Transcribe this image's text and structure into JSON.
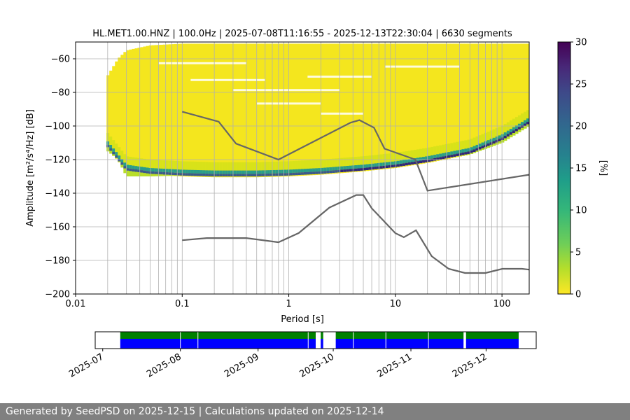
{
  "chart_data": [
    {
      "type": "heatmap",
      "title": "HL.MET1.00.HNZ | 100.0Hz | 2025-07-08T11:16:55 - 2025-12-13T22:30:04 | 6630 segments",
      "xlabel": "Period [s]",
      "ylabel": "Amplitude [m²/s⁴/Hz] [dB]",
      "x_scale": "log",
      "xlim": [
        0.01,
        180
      ],
      "ylim": [
        -200,
        -50
      ],
      "x_ticks": [
        {
          "value": 0.01,
          "label": "0.01"
        },
        {
          "value": 0.1,
          "label": "0.1"
        },
        {
          "value": 1,
          "label": "1"
        },
        {
          "value": 10,
          "label": "10"
        },
        {
          "value": 100,
          "label": "100"
        }
      ],
      "y_ticks": [
        -60,
        -80,
        -100,
        -120,
        -140,
        -160,
        -180,
        -200
      ],
      "grid": true,
      "colorbar": {
        "label": "[%]",
        "min": 0,
        "max": 30,
        "ticks": [
          0,
          5,
          10,
          15,
          20,
          25,
          30
        ],
        "colormap": "viridis_r"
      },
      "noise_model_high": {
        "name": "NHNM",
        "x": [
          0.1,
          0.22,
          0.32,
          0.8,
          3.8,
          4.6,
          6.3,
          7.9,
          15.4,
          20,
          180
        ],
        "y": [
          -91.5,
          -97.4,
          -110.5,
          -120,
          -98,
          -96.5,
          -101,
          -113.5,
          -120,
          -138.5,
          -129
        ]
      },
      "noise_model_low": {
        "name": "NLNM",
        "x": [
          0.1,
          0.17,
          0.4,
          0.8,
          1.24,
          2.4,
          4.3,
          5,
          6,
          10,
          12,
          15.6,
          21.9,
          31.6,
          45,
          70,
          101,
          154,
          180
        ],
        "y": [
          -168,
          -166.7,
          -166.7,
          -169.2,
          -163.7,
          -148.6,
          -141.1,
          -141.1,
          -149,
          -163.8,
          -166.2,
          -162.1,
          -177.5,
          -185,
          -187.5,
          -187.5,
          -185,
          -185,
          -185.5
        ]
      },
      "pdf_mode": {
        "x": [
          0.02,
          0.03,
          0.05,
          0.1,
          0.2,
          0.5,
          1,
          2,
          5,
          10,
          20,
          50,
          100,
          180
        ],
        "y": [
          -110,
          -124,
          -126,
          -127,
          -127.5,
          -127.5,
          -127,
          -126,
          -124,
          -122,
          -119,
          -114,
          -106,
          -96
        ]
      },
      "pdf_bands": {
        "x": [
          0.0195,
          0.02,
          0.025,
          0.03,
          0.05,
          0.1,
          0.2,
          0.5,
          1,
          2,
          5,
          10,
          20,
          50,
          100,
          180
        ],
        "upper": [
          -83,
          -70,
          -60,
          -55,
          -52,
          -51,
          -51,
          -51,
          -51,
          -51,
          -51,
          -51,
          -51,
          -51,
          -51,
          -51
        ],
        "lower": [
          -112,
          -115,
          -120,
          -130,
          -130,
          -129.5,
          -129.5,
          -129.5,
          -129,
          -128,
          -126,
          -123,
          -121,
          -117,
          -110,
          -100
        ]
      }
    },
    {
      "type": "bar",
      "title": "",
      "xlabel": "",
      "ylabel": "",
      "x_ticks": [
        "2025-07",
        "2025-08",
        "2025-09",
        "2025-10",
        "2025-11",
        "2025-12"
      ],
      "xlim": [
        "2025-06-28",
        "2025-12-21"
      ],
      "series": [
        {
          "color": "#008000",
          "segments": [
            {
              "start": "2025-07-08",
              "end": "2025-09-23"
            },
            {
              "start": "2025-09-26",
              "end": "2025-09-26"
            },
            {
              "start": "2025-10-02",
              "end": "2025-11-21"
            },
            {
              "start": "2025-11-23",
              "end": "2025-12-13"
            }
          ]
        },
        {
          "color": "#0000ff",
          "segments": [
            {
              "start": "2025-07-08",
              "end": "2025-09-23"
            },
            {
              "start": "2025-09-26",
              "end": "2025-09-26"
            },
            {
              "start": "2025-10-02",
              "end": "2025-11-21"
            },
            {
              "start": "2025-11-23",
              "end": "2025-12-13"
            }
          ]
        }
      ],
      "gaps": [
        "2025-08-01",
        "2025-08-08",
        "2025-09-21",
        "2025-10-09",
        "2025-10-22",
        "2025-11-08"
      ]
    }
  ],
  "footer": {
    "text": "Generated by SeedPSD on 2025-12-15 | Calculations updated on 2025-12-14"
  },
  "colors": {
    "model_line": "#666666",
    "grid": "#b0b0b0",
    "footer_bg": "#808080"
  }
}
